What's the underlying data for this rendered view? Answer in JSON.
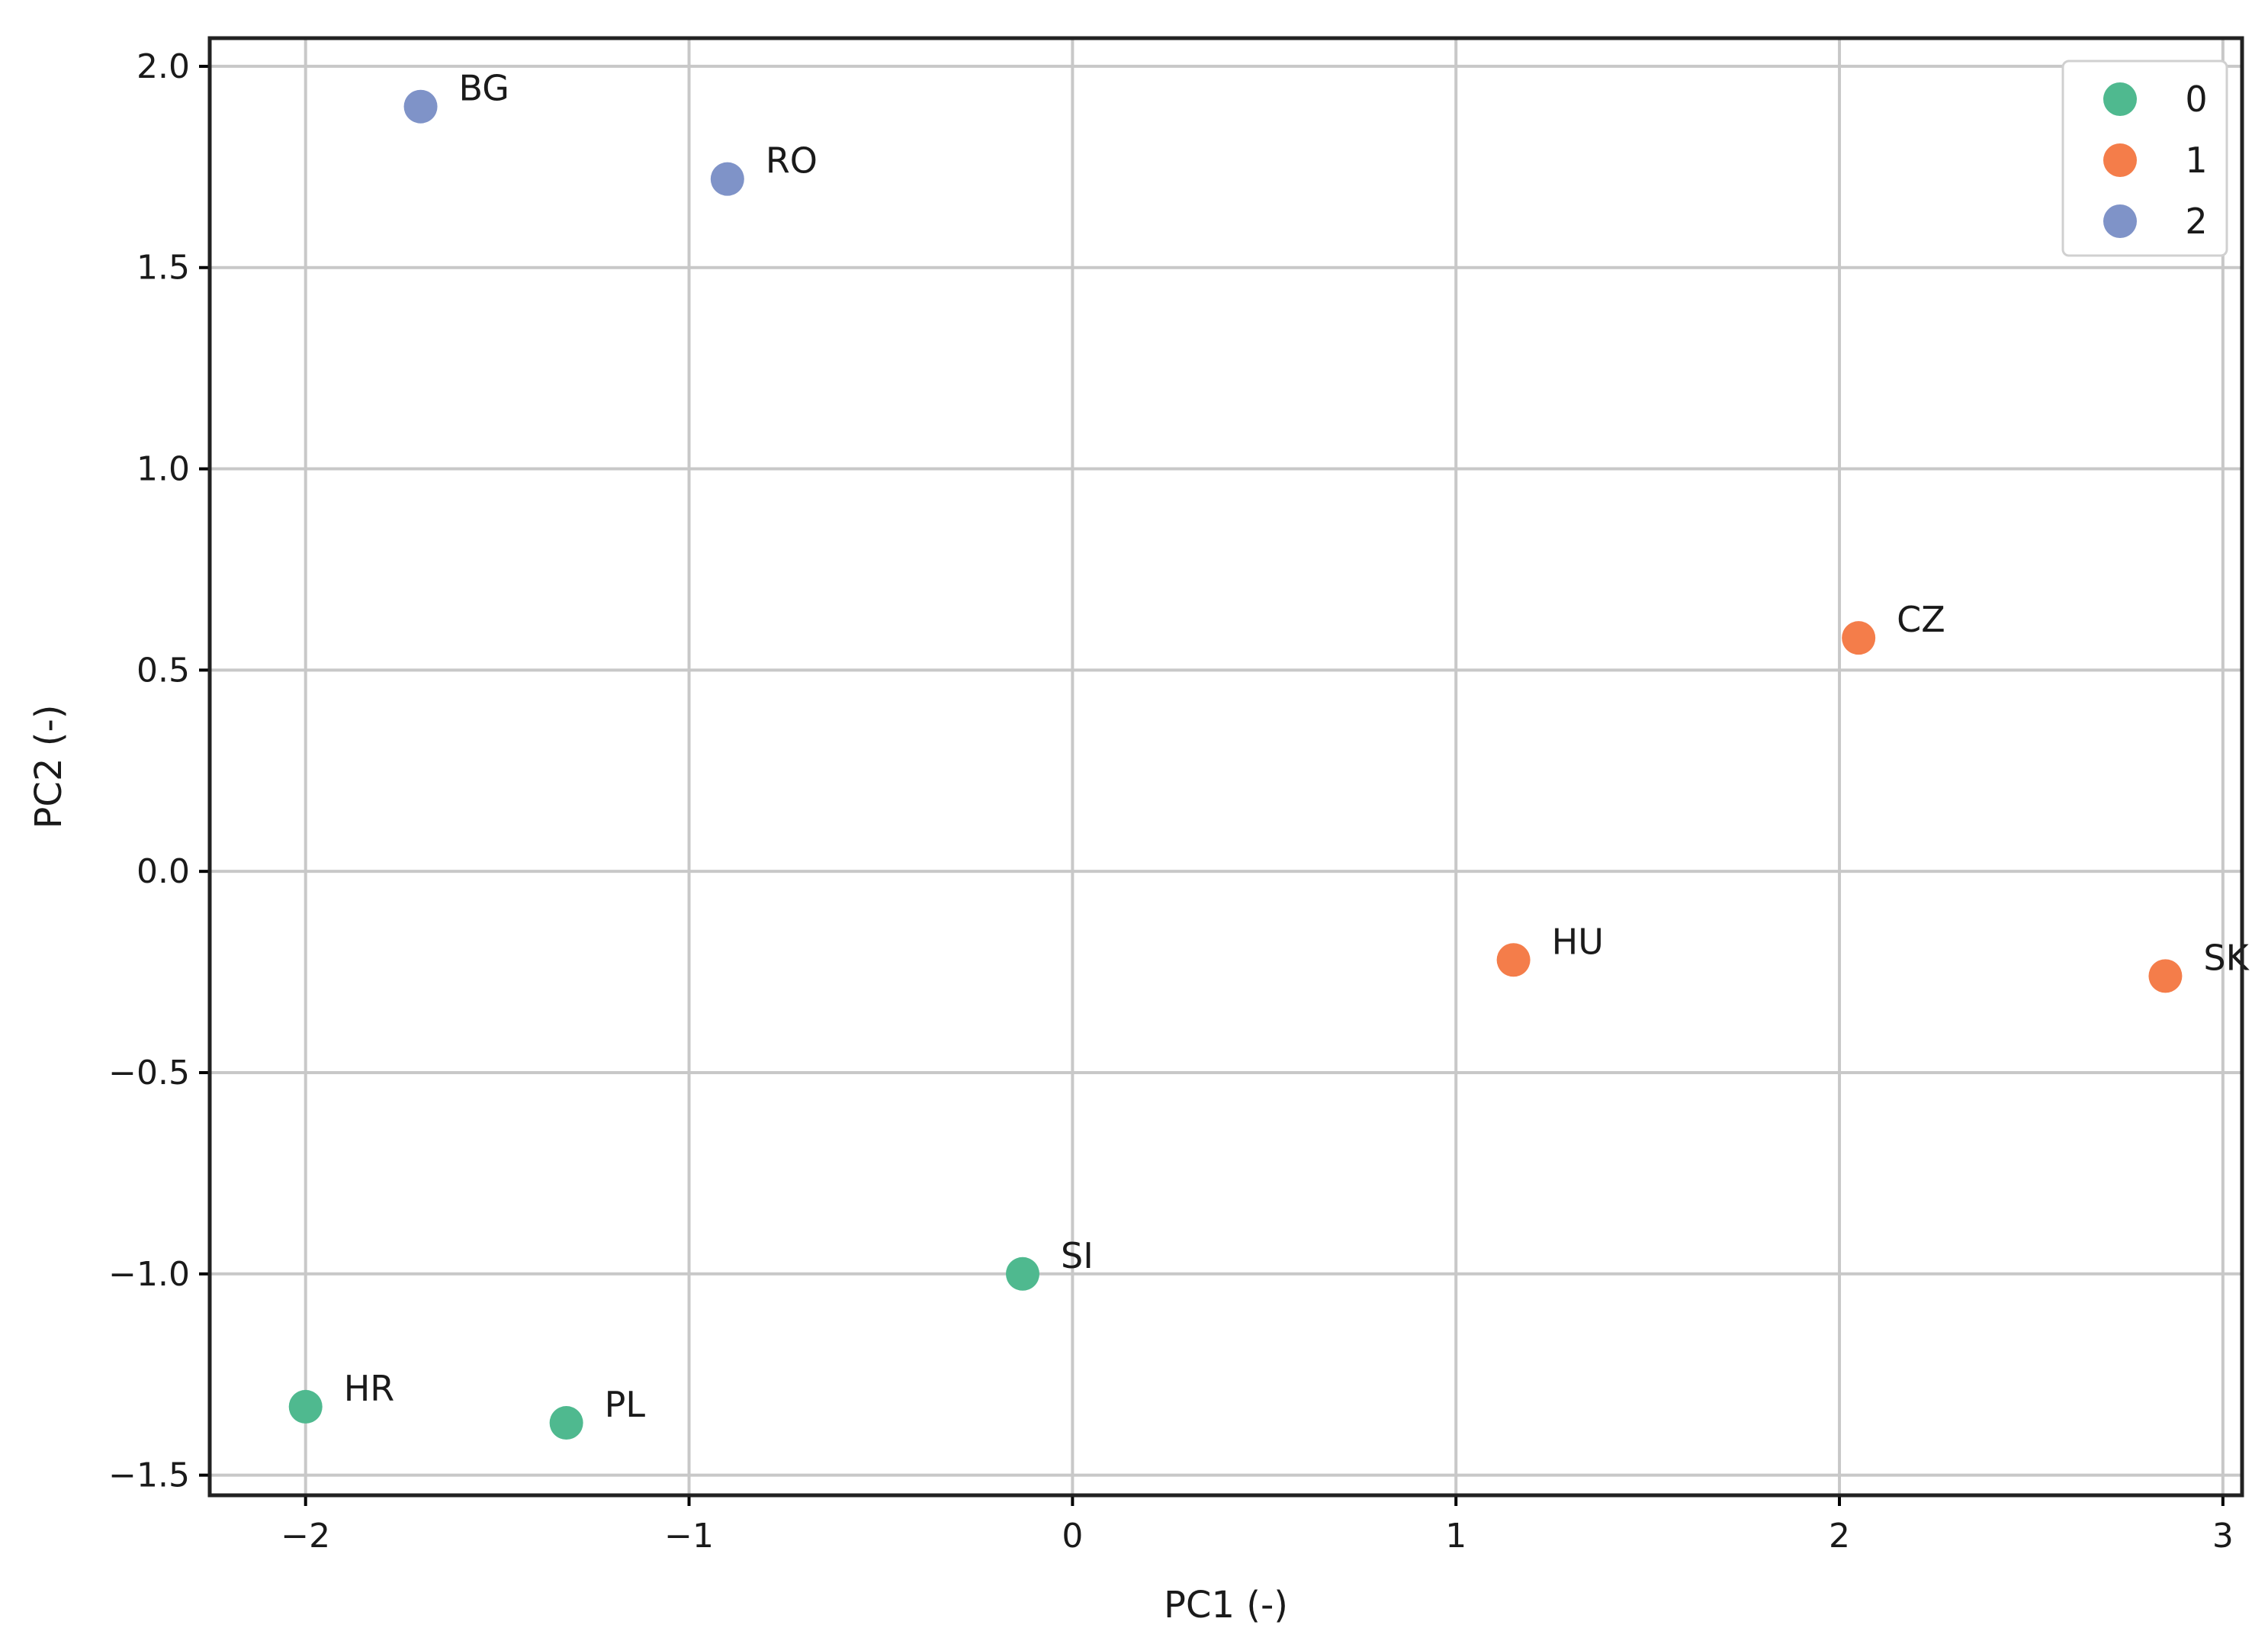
{
  "chart_data": {
    "type": "scatter",
    "title": "",
    "xlabel": "PC1 (-)",
    "ylabel": "PC2 (-)",
    "xlim": [
      -2.25,
      3.05
    ],
    "ylim": [
      -1.55,
      2.07
    ],
    "xticks": [
      -2,
      -1,
      0,
      1,
      2,
      3
    ],
    "xtick_labels": [
      "−2",
      "−1",
      "0",
      "1",
      "2",
      "3"
    ],
    "yticks": [
      -1.5,
      -1.0,
      -0.5,
      0.0,
      0.5,
      1.0,
      1.5,
      2.0
    ],
    "ytick_labels": [
      "−1.5",
      "−1.0",
      "−0.5",
      "0.0",
      "0.5",
      "1.0",
      "1.5",
      "2.0"
    ],
    "grid": true,
    "legend_position": "top-right",
    "series": [
      {
        "name": "0",
        "color": "#4fb98f",
        "points": [
          {
            "label": "HR",
            "x": -2.0,
            "y": -1.33
          },
          {
            "label": "PL",
            "x": -1.32,
            "y": -1.37
          },
          {
            "label": "SI",
            "x": -0.13,
            "y": -1.0
          }
        ]
      },
      {
        "name": "1",
        "color": "#f47d4a",
        "points": [
          {
            "label": "CZ",
            "x": 2.05,
            "y": 0.58
          },
          {
            "label": "HU",
            "x": 1.15,
            "y": -0.22
          },
          {
            "label": "SK",
            "x": 2.85,
            "y": -0.26
          }
        ]
      },
      {
        "name": "2",
        "color": "#7f93c8",
        "points": [
          {
            "label": "BG",
            "x": -1.7,
            "y": 1.9
          },
          {
            "label": "RO",
            "x": -0.9,
            "y": 1.72
          }
        ]
      }
    ]
  }
}
